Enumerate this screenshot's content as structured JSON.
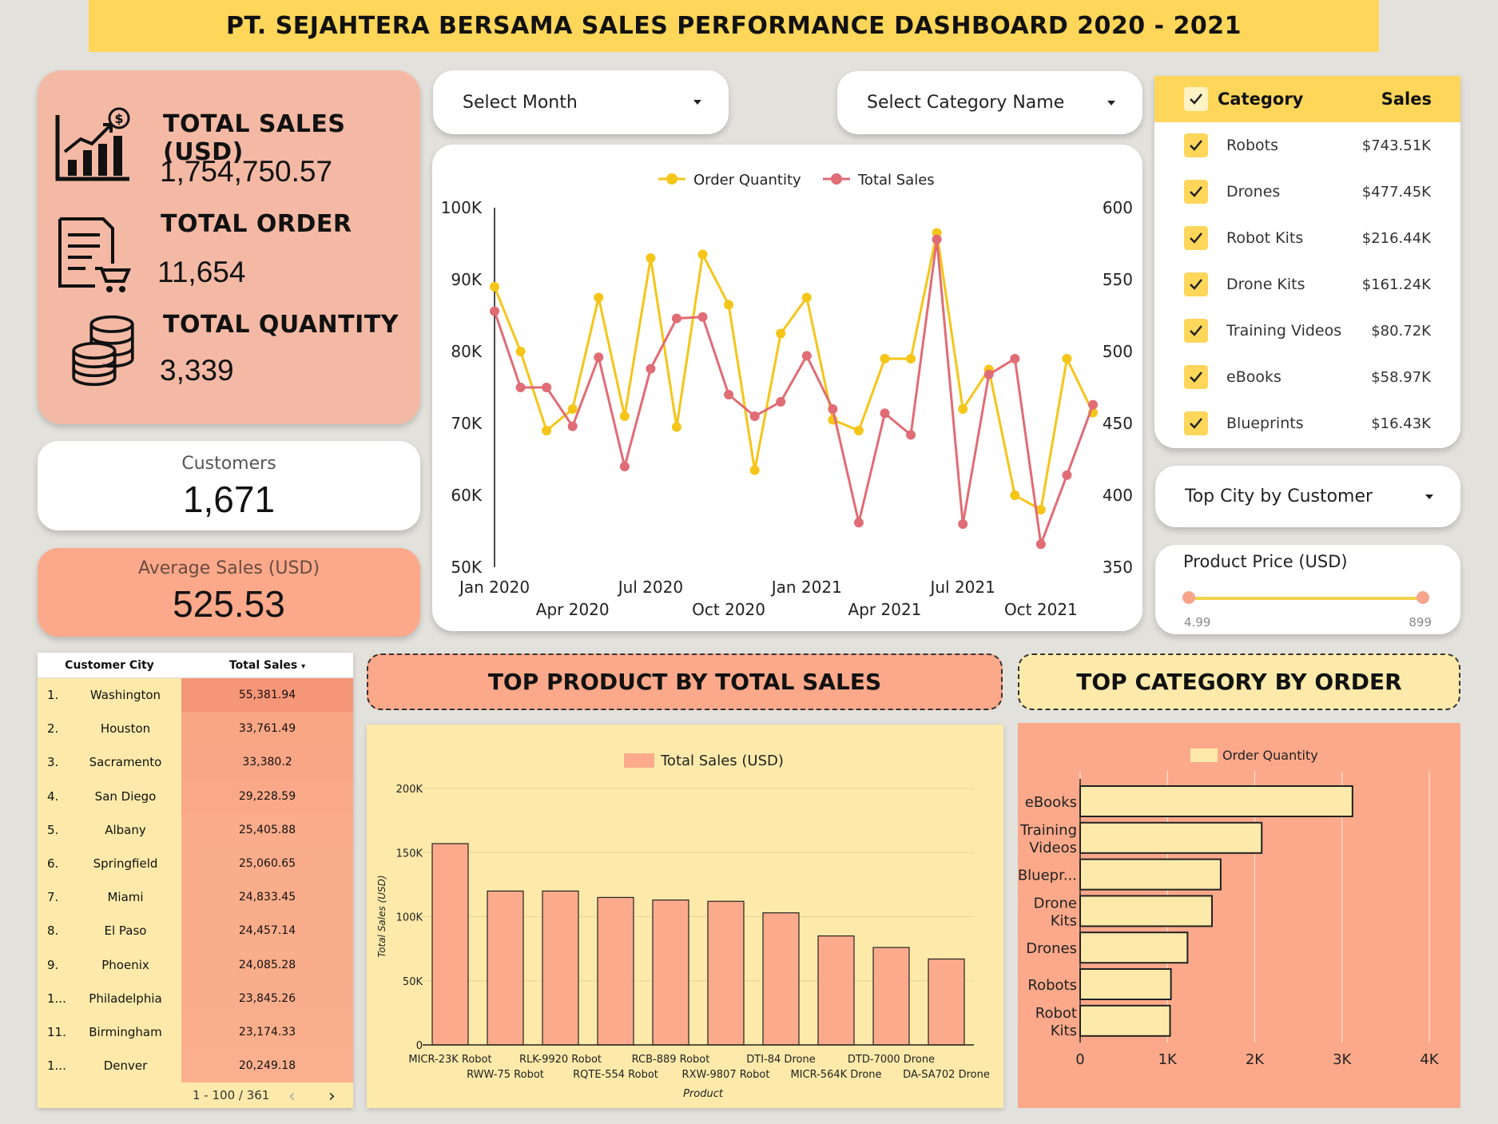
{
  "header": {
    "title": "PT. SEJAHTERA BERSAMA SALES PERFORMANCE DASHBOARD 2020 - 2021"
  },
  "kpis": {
    "total_sales_label": "TOTAL SALES (USD)",
    "total_sales_value": "1,754,750.57",
    "total_order_label": "TOTAL ORDER",
    "total_order_value": "11,654",
    "total_quantity_label": "TOTAL QUANTITY",
    "total_quantity_value": "3,339"
  },
  "customers": {
    "label": "Customers",
    "value": "1,671"
  },
  "avg_sales": {
    "label": "Average Sales (USD)",
    "value": "525.53"
  },
  "filters": {
    "month_placeholder": "Select Month",
    "category_placeholder": "Select Category Name",
    "city_placeholder": "Top City by Customer"
  },
  "price_slider": {
    "label": "Product Price (USD)",
    "min_label": "4.99",
    "max_label": "899",
    "min": 4.99,
    "max": 899,
    "low": 4.99,
    "high": 899
  },
  "category_table": {
    "header_category": "Category",
    "header_sales": "Sales",
    "rows": [
      {
        "name": "Robots",
        "sales": "$743.51K"
      },
      {
        "name": "Drones",
        "sales": "$477.45K"
      },
      {
        "name": "Robot Kits",
        "sales": "$216.44K"
      },
      {
        "name": "Drone Kits",
        "sales": "$161.24K"
      },
      {
        "name": "Training Videos",
        "sales": "$80.72K"
      },
      {
        "name": "eBooks",
        "sales": "$58.97K"
      },
      {
        "name": "Blueprints",
        "sales": "$16.43K"
      }
    ]
  },
  "city_table": {
    "col_city": "Customer City",
    "col_sales": "Total Sales",
    "pagination": "1 - 100 / 361",
    "rows": [
      {
        "rank": "1.",
        "city": "Washington",
        "sales": "55,381.94",
        "value": 55381.94
      },
      {
        "rank": "2.",
        "city": "Houston",
        "sales": "33,761.49",
        "value": 33761.49
      },
      {
        "rank": "3.",
        "city": "Sacramento",
        "sales": "33,380.2",
        "value": 33380.2
      },
      {
        "rank": "4.",
        "city": "San Diego",
        "sales": "29,228.59",
        "value": 29228.59
      },
      {
        "rank": "5.",
        "city": "Albany",
        "sales": "25,405.88",
        "value": 25405.88
      },
      {
        "rank": "6.",
        "city": "Springfield",
        "sales": "25,060.65",
        "value": 25060.65
      },
      {
        "rank": "7.",
        "city": "Miami",
        "sales": "24,833.45",
        "value": 24833.45
      },
      {
        "rank": "8.",
        "city": "El Paso",
        "sales": "24,457.14",
        "value": 24457.14
      },
      {
        "rank": "9.",
        "city": "Phoenix",
        "sales": "24,085.28",
        "value": 24085.28
      },
      {
        "rank": "1...",
        "city": "Philadelphia",
        "sales": "23,845.26",
        "value": 23845.26
      },
      {
        "rank": "11.",
        "city": "Birmingham",
        "sales": "23,174.33",
        "value": 23174.33
      },
      {
        "rank": "1...",
        "city": "Denver",
        "sales": "20,249.18",
        "value": 20249.18
      }
    ]
  },
  "sections": {
    "top_product_title": "TOP PRODUCT BY  TOTAL SALES",
    "top_category_title": "TOP CATEGORY BY ORDER"
  },
  "colors": {
    "order_quantity": "#f5c518",
    "total_sales": "#e06c75",
    "bar_fill": "#fbab8c",
    "panel_yellow": "#fdeaaa",
    "panel_salmon": "#fbab8c",
    "bar_cream": "#fdeaaa"
  },
  "chart_data": [
    {
      "type": "line",
      "x_tick_labels_top": [
        "Jan 2020",
        "Jul 2020",
        "Jan 2021",
        "Jul 2021"
      ],
      "x_tick_labels_bottom": [
        "Apr 2020",
        "Oct 2020",
        "Apr 2021",
        "Oct 2021"
      ],
      "x": [
        "Jan 2020",
        "Feb 2020",
        "Mar 2020",
        "Apr 2020",
        "May 2020",
        "Jun 2020",
        "Jul 2020",
        "Aug 2020",
        "Sep 2020",
        "Oct 2020",
        "Nov 2020",
        "Dec 2020",
        "Jan 2021",
        "Feb 2021",
        "Mar 2021",
        "Apr 2021",
        "May 2021",
        "Jun 2021",
        "Jul 2021",
        "Aug 2021",
        "Sep 2021",
        "Oct 2021",
        "Nov 2021",
        "Dec 2021"
      ],
      "series": [
        {
          "name": "Order Quantity",
          "axis": "left",
          "values": [
            89000,
            80000,
            69000,
            72000,
            87500,
            71000,
            93000,
            69500,
            93500,
            86500,
            63500,
            82500,
            87500,
            70500,
            69000,
            79000,
            79000,
            96500,
            72000,
            77500,
            60000,
            58000,
            79000,
            71500
          ]
        },
        {
          "name": "Total Sales",
          "axis": "right",
          "values": [
            528,
            475,
            475,
            448,
            496,
            420,
            488,
            523,
            524,
            470,
            455,
            465,
            497,
            460,
            381,
            457,
            442,
            578,
            380,
            484,
            495,
            366,
            414,
            463
          ]
        }
      ],
      "y_left": {
        "min": 50000,
        "max": 100000,
        "ticks": [
          "50K",
          "60K",
          "70K",
          "80K",
          "90K",
          "100K"
        ]
      },
      "y_right": {
        "min": 350,
        "max": 600,
        "ticks": [
          "350",
          "400",
          "450",
          "500",
          "550",
          "600"
        ]
      },
      "legend": "top"
    },
    {
      "type": "bar",
      "title": "",
      "legend": [
        "Total Sales (USD)"
      ],
      "xlabel": "Product",
      "ylabel": "Total Sales (USD)",
      "ylim": [
        0,
        200000
      ],
      "y_ticks": [
        "0",
        "50K",
        "100K",
        "150K",
        "200K"
      ],
      "categories": [
        "MICR-23K Robot",
        "RWW-75 Robot",
        "RLK-9920 Robot",
        "RQTE-554 Robot",
        "RCB-889 Robot",
        "RXW-9807 Robot",
        "DTI-84 Drone",
        "MICR-564K Drone",
        "DTD-7000 Drone",
        "DA-SA702 Drone"
      ],
      "values": [
        157000,
        120000,
        120000,
        115000,
        113000,
        112000,
        103000,
        85000,
        76000,
        67000
      ]
    },
    {
      "type": "bar",
      "orientation": "horizontal",
      "legend": [
        "Order Quantity"
      ],
      "xlim": [
        0,
        4000
      ],
      "x_ticks": [
        "0",
        "1K",
        "2K",
        "3K",
        "4K"
      ],
      "categories": [
        "eBooks",
        "Training Videos",
        "Bluepr...",
        "Drone Kits",
        "Drones",
        "Robots",
        "Robot Kits"
      ],
      "values": [
        3120,
        2080,
        1610,
        1510,
        1230,
        1040,
        1030
      ]
    }
  ]
}
